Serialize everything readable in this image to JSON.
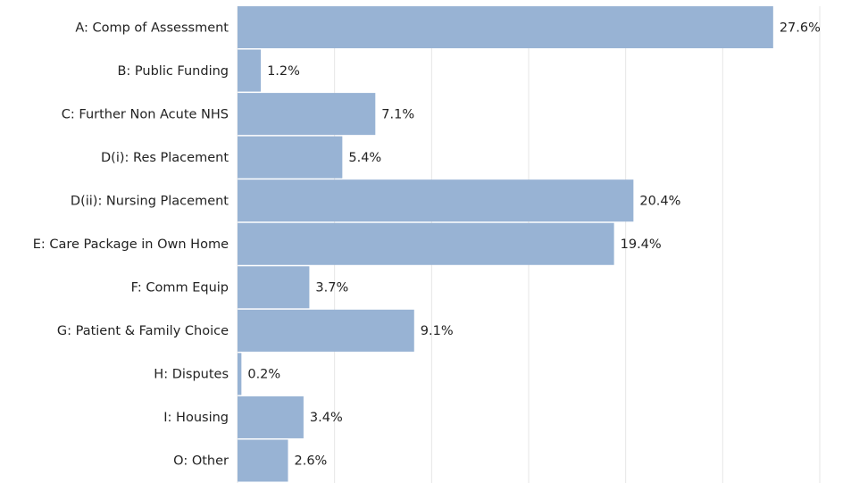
{
  "chart_data": {
    "type": "barh",
    "categories": [
      "A: Comp of Assessment",
      "B: Public Funding",
      "C: Further Non Acute NHS",
      "D(i): Res Placement",
      "D(ii): Nursing Placement",
      "E: Care Package in Own Home",
      "F: Comm Equip",
      "G: Patient & Family Choice",
      "H: Disputes",
      "I: Housing",
      "O: Other"
    ],
    "values": [
      27.6,
      1.2,
      7.1,
      5.4,
      20.4,
      19.4,
      3.7,
      9.1,
      0.2,
      3.4,
      2.6
    ],
    "value_labels": [
      "27.6%",
      "1.2%",
      "7.1%",
      "5.4%",
      "20.4%",
      "19.4%",
      "3.7%",
      "9.1%",
      "0.2%",
      "3.4%",
      "2.6%"
    ],
    "color": "#98b3d4",
    "xlim": [
      0,
      30
    ],
    "xticks": [
      0,
      5,
      10,
      15,
      20,
      25,
      30
    ],
    "grid": true
  }
}
